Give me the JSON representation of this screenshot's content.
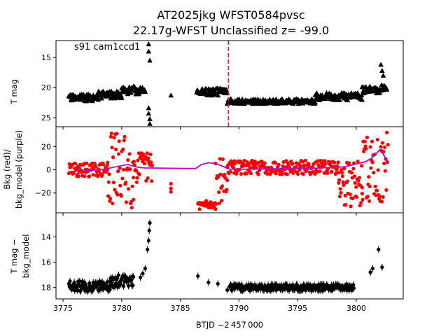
{
  "figure": {
    "title_line1": "AT2025jkg  WFST0584pvsc",
    "title_line2": "22.17g-WFST Unclassified z= -99.0",
    "annotation": "s91 cam1ccd1",
    "xlabel": "BTJD −2 457 000"
  },
  "chart_data": [
    {
      "type": "scatter",
      "panel": "top",
      "ylabel": "T mag",
      "y_inverted": true,
      "xlim": [
        3774.4,
        3804.0
      ],
      "ylim": [
        26.5,
        12.2
      ],
      "xticks": [
        "3775",
        "3780",
        "3785",
        "3790",
        "3795",
        "3800"
      ],
      "yticks": [
        "15",
        "20",
        "25"
      ],
      "marker": "triangle",
      "color": "#000000",
      "vline": {
        "x": 3789.1,
        "color": "#d62728",
        "style": "dashed"
      },
      "segments": [
        {
          "x_start": 3775.5,
          "x_end": 3778.0,
          "y_base": 21.7,
          "y_spread": 0.6
        },
        {
          "x_start": 3778.0,
          "x_end": 3780.0,
          "y_base": 21.2,
          "y_spread": 0.6
        },
        {
          "x_start": 3780.0,
          "x_end": 3782.0,
          "y_base": 20.5,
          "y_spread": 0.7
        },
        {
          "x_start": 3786.4,
          "x_end": 3789.0,
          "y_base": 20.7,
          "y_spread": 0.6
        },
        {
          "x_start": 3789.0,
          "x_end": 3796.5,
          "y_base": 22.3,
          "y_spread": 0.4
        },
        {
          "x_start": 3796.5,
          "x_end": 3800.5,
          "y_base": 21.5,
          "y_spread": 0.6
        },
        {
          "x_start": 3800.5,
          "x_end": 3802.6,
          "y_base": 20.3,
          "y_spread": 0.7
        }
      ],
      "points": [
        {
          "x": 3782.3,
          "y": 12.8
        },
        {
          "x": 3782.3,
          "y": 14.0
        },
        {
          "x": 3782.4,
          "y": 15.5
        },
        {
          "x": 3782.3,
          "y": 23.4
        },
        {
          "x": 3782.3,
          "y": 24.3
        },
        {
          "x": 3782.4,
          "y": 25.2
        },
        {
          "x": 3782.4,
          "y": 26.0
        },
        {
          "x": 3784.2,
          "y": 21.3
        },
        {
          "x": 3802.1,
          "y": 16.2
        },
        {
          "x": 3802.2,
          "y": 17.2
        },
        {
          "x": 3802.3,
          "y": 18.0
        }
      ]
    },
    {
      "type": "scatter",
      "panel": "middle",
      "ylabel_line1": "Bkg (red)/",
      "ylabel_line2": "bkg_model (purple)",
      "xlim": [
        3774.4,
        3804.0
      ],
      "ylim": [
        -37,
        37
      ],
      "yticks": [
        "20",
        "0",
        "−20"
      ],
      "series": [
        {
          "color": "#ff0000",
          "marker": "circle",
          "segments": [
            {
              "x_start": 3775.5,
              "x_end": 3778.8,
              "y_base": 0.0,
              "y_spread": 6
            },
            {
              "x_start": 3778.8,
              "x_end": 3781.0,
              "y_base": 0.0,
              "y_spread": 33
            },
            {
              "x_start": 3781.0,
              "x_end": 3782.6,
              "y_base": 2.0,
              "y_spread": 14
            },
            {
              "x_start": 3786.5,
              "x_end": 3788.0,
              "y_base": -30.0,
              "y_spread": 4
            },
            {
              "x_start": 3788.0,
              "x_end": 3789.0,
              "y_base": -10.0,
              "y_spread": 20
            },
            {
              "x_start": 3789.0,
              "x_end": 3798.5,
              "y_base": 2.0,
              "y_spread": 6
            },
            {
              "x_start": 3798.5,
              "x_end": 3800.5,
              "y_base": -12.0,
              "y_spread": 20
            },
            {
              "x_start": 3800.5,
              "x_end": 3802.7,
              "y_base": 0.0,
              "y_spread": 32
            }
          ],
          "points": [
            {
              "x": 3784.2,
              "y": -12
            },
            {
              "x": 3784.2,
              "y": -16
            },
            {
              "x": 3784.2,
              "y": -19
            }
          ]
        },
        {
          "color": "#bf00bf",
          "style": "line",
          "x": [
            3775.5,
            3777.0,
            3778.5,
            3779.5,
            3780.5,
            3781.0,
            3781.5,
            3782.0,
            3782.6,
            3786.3,
            3786.8,
            3787.4,
            3788.0,
            3788.6,
            3789.2,
            3791.0,
            3793.0,
            3795.0,
            3797.0,
            3799.0,
            3800.0,
            3800.8,
            3801.3,
            3801.7,
            3802.0,
            3802.2,
            3802.5,
            3802.7
          ],
          "y": [
            -1.5,
            -1.0,
            0.5,
            2.5,
            4.5,
            3.0,
            2.0,
            1.5,
            1.5,
            1.0,
            4.5,
            6.0,
            5.5,
            3.0,
            0.5,
            0.5,
            0.8,
            1.0,
            1.5,
            2.5,
            5.0,
            7.0,
            10.0,
            14.0,
            17.0,
            15.0,
            10.0,
            6.0
          ]
        }
      ]
    },
    {
      "type": "scatter",
      "panel": "bottom",
      "ylabel_line1": "T mag −",
      "ylabel_line2": "bkg_model",
      "y_inverted": true,
      "xlim": [
        3774.4,
        3804.0
      ],
      "ylim": [
        18.9,
        12.1
      ],
      "yticks": [
        "14",
        "16",
        "18"
      ],
      "marker": "circle",
      "errorbars": true,
      "color": "#000000",
      "segments": [
        {
          "x_start": 3775.5,
          "x_end": 3779.0,
          "y_base": 17.9,
          "y_spread": 0.4
        },
        {
          "x_start": 3779.0,
          "x_end": 3781.0,
          "y_base": 17.5,
          "y_spread": 0.5
        },
        {
          "x_start": 3789.2,
          "x_end": 3799.8,
          "y_base": 18.0,
          "y_spread": 0.25
        }
      ],
      "points": [
        {
          "x": 3781.6,
          "y": 17.2
        },
        {
          "x": 3781.8,
          "y": 16.9
        },
        {
          "x": 3782.0,
          "y": 16.5
        },
        {
          "x": 3782.2,
          "y": 15.0
        },
        {
          "x": 3782.3,
          "y": 14.3
        },
        {
          "x": 3782.35,
          "y": 13.5
        },
        {
          "x": 3782.4,
          "y": 12.9
        },
        {
          "x": 3786.5,
          "y": 17.1
        },
        {
          "x": 3787.4,
          "y": 17.6
        },
        {
          "x": 3788.2,
          "y": 17.7
        },
        {
          "x": 3789.0,
          "y": 18.2
        },
        {
          "x": 3801.2,
          "y": 16.8
        },
        {
          "x": 3801.4,
          "y": 16.5
        },
        {
          "x": 3801.9,
          "y": 15.0
        },
        {
          "x": 3802.2,
          "y": 16.4
        }
      ]
    }
  ]
}
